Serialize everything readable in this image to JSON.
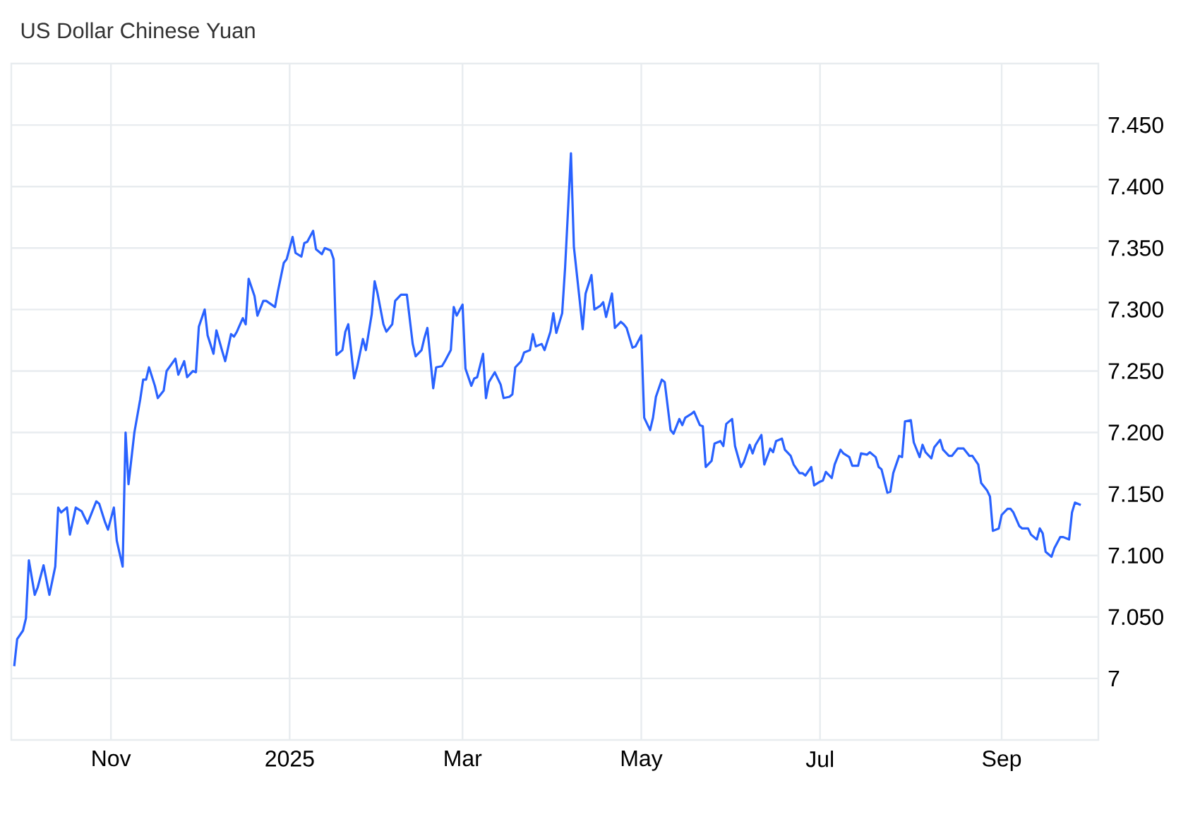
{
  "chart_data": {
    "type": "line",
    "title": "US Dollar Chinese Yuan",
    "color": "#2962ff",
    "grid": true,
    "line_style": "solid",
    "marker": "none",
    "xlim": [
      "2024-09-28",
      "2025-10-04"
    ],
    "xticks": [
      {
        "value": "2024-11-01",
        "label": "Nov"
      },
      {
        "value": "2025-01-01",
        "label": "2025"
      },
      {
        "value": "2025-03-01",
        "label": "Mar"
      },
      {
        "value": "2025-05-01",
        "label": "May"
      },
      {
        "value": "2025-07-01",
        "label": "Jul"
      },
      {
        "value": "2025-09-01",
        "label": "Sep"
      }
    ],
    "ylim": [
      6.95,
      7.5
    ],
    "yticks": [
      7,
      {
        "value": 7.05,
        "label": "7.050"
      },
      {
        "value": 7.1,
        "label": "7.100"
      },
      {
        "value": 7.15,
        "label": "7.150"
      },
      {
        "value": 7.2,
        "label": "7.200"
      },
      {
        "value": 7.25,
        "label": "7.250"
      },
      {
        "value": 7.3,
        "label": "7.300"
      },
      {
        "value": 7.35,
        "label": "7.350"
      },
      {
        "value": 7.4,
        "label": "7.400"
      },
      {
        "value": 7.45,
        "label": "7.450"
      }
    ],
    "x": [
      "2024-09-29",
      "2024-09-30",
      "2024-10-02",
      "2024-10-03",
      "2024-10-04",
      "2024-10-06",
      "2024-10-07",
      "2024-10-09",
      "2024-10-11",
      "2024-10-13",
      "2024-10-14",
      "2024-10-15",
      "2024-10-17",
      "2024-10-18",
      "2024-10-20",
      "2024-10-22",
      "2024-10-24",
      "2024-10-27",
      "2024-10-28",
      "2024-10-30",
      "2024-10-31",
      "2024-11-02",
      "2024-11-03",
      "2024-11-05",
      "2024-11-06",
      "2024-11-07",
      "2024-11-09",
      "2024-11-11",
      "2024-11-12",
      "2024-11-13",
      "2024-11-14",
      "2024-11-16",
      "2024-11-17",
      "2024-11-19",
      "2024-11-20",
      "2024-11-23",
      "2024-11-24",
      "2024-11-26",
      "2024-11-27",
      "2024-11-29",
      "2024-11-30",
      "2024-12-01",
      "2024-12-03",
      "2024-12-04",
      "2024-12-06",
      "2024-12-07",
      "2024-12-09",
      "2024-12-10",
      "2024-12-12",
      "2024-12-13",
      "2024-12-14",
      "2024-12-16",
      "2024-12-17",
      "2024-12-18",
      "2024-12-20",
      "2024-12-21",
      "2024-12-23",
      "2024-12-24",
      "2024-12-27",
      "2024-12-28",
      "2024-12-30",
      "2024-12-31",
      "2025-01-02",
      "2025-01-03",
      "2025-01-05",
      "2025-01-06",
      "2025-01-07",
      "2025-01-09",
      "2025-01-10",
      "2025-01-12",
      "2025-01-13",
      "2025-01-15",
      "2025-01-16",
      "2025-01-17",
      "2025-01-19",
      "2025-01-20",
      "2025-01-21",
      "2025-01-23",
      "2025-01-24",
      "2025-01-26",
      "2025-01-27",
      "2025-01-29",
      "2025-01-30",
      "2025-01-31",
      "2025-02-02",
      "2025-02-03",
      "2025-02-05",
      "2025-02-06",
      "2025-02-08",
      "2025-02-10",
      "2025-02-12",
      "2025-02-13",
      "2025-02-15",
      "2025-02-16",
      "2025-02-17",
      "2025-02-19",
      "2025-02-20",
      "2025-02-22",
      "2025-02-23",
      "2025-02-25",
      "2025-02-26",
      "2025-02-27",
      "2025-03-01",
      "2025-03-02",
      "2025-03-04",
      "2025-03-05",
      "2025-03-06",
      "2025-03-08",
      "2025-03-09",
      "2025-03-10",
      "2025-03-12",
      "2025-03-14",
      "2025-03-15",
      "2025-03-17",
      "2025-03-18",
      "2025-03-19",
      "2025-03-21",
      "2025-03-22",
      "2025-03-24",
      "2025-03-25",
      "2025-03-26",
      "2025-03-28",
      "2025-03-29",
      "2025-03-31",
      "2025-04-01",
      "2025-04-02",
      "2025-04-04",
      "2025-04-05",
      "2025-04-07",
      "2025-04-08",
      "2025-04-10",
      "2025-04-11",
      "2025-04-12",
      "2025-04-14",
      "2025-04-15",
      "2025-04-17",
      "2025-04-18",
      "2025-04-19",
      "2025-04-21",
      "2025-04-22",
      "2025-04-24",
      "2025-04-25",
      "2025-04-26",
      "2025-04-28",
      "2025-04-29",
      "2025-05-01",
      "2025-05-02",
      "2025-05-04",
      "2025-05-05",
      "2025-05-06",
      "2025-05-08",
      "2025-05-09",
      "2025-05-11",
      "2025-05-12",
      "2025-05-14",
      "2025-05-15",
      "2025-05-16",
      "2025-05-18",
      "2025-05-19",
      "2025-05-21",
      "2025-05-22",
      "2025-05-23",
      "2025-05-25",
      "2025-05-26",
      "2025-05-28",
      "2025-05-29",
      "2025-05-30",
      "2025-06-01",
      "2025-06-02",
      "2025-06-04",
      "2025-06-05",
      "2025-06-07",
      "2025-06-08",
      "2025-06-09",
      "2025-06-11",
      "2025-06-12",
      "2025-06-14",
      "2025-06-15",
      "2025-06-16",
      "2025-06-18",
      "2025-06-19",
      "2025-06-21",
      "2025-06-22",
      "2025-06-24",
      "2025-06-25",
      "2025-06-26",
      "2025-06-28",
      "2025-06-29",
      "2025-07-01",
      "2025-07-02",
      "2025-07-03",
      "2025-07-05",
      "2025-07-06",
      "2025-07-08",
      "2025-07-09",
      "2025-07-11",
      "2025-07-12",
      "2025-07-14",
      "2025-07-15",
      "2025-07-17",
      "2025-07-18",
      "2025-07-20",
      "2025-07-21",
      "2025-07-22",
      "2025-07-24",
      "2025-07-25",
      "2025-07-26",
      "2025-07-28",
      "2025-07-29",
      "2025-07-30",
      "2025-08-01",
      "2025-08-02",
      "2025-08-04",
      "2025-08-05",
      "2025-08-06",
      "2025-08-08",
      "2025-08-09",
      "2025-08-11",
      "2025-08-12",
      "2025-08-14",
      "2025-08-15",
      "2025-08-17",
      "2025-08-19",
      "2025-08-21",
      "2025-08-22",
      "2025-08-24",
      "2025-08-25",
      "2025-08-27",
      "2025-08-28",
      "2025-08-29",
      "2025-08-31",
      "2025-09-01",
      "2025-09-03",
      "2025-09-04",
      "2025-09-05",
      "2025-09-07",
      "2025-09-08",
      "2025-09-10",
      "2025-09-11",
      "2025-09-13",
      "2025-09-14",
      "2025-09-15",
      "2025-09-16",
      "2025-09-18",
      "2025-09-19",
      "2025-09-21",
      "2025-09-22",
      "2025-09-24",
      "2025-09-25",
      "2025-09-26",
      "2025-09-28"
    ],
    "values": [
      7.01,
      7.032,
      7.039,
      7.049,
      7.096,
      7.068,
      7.074,
      7.092,
      7.068,
      7.091,
      7.139,
      7.135,
      7.139,
      7.117,
      7.139,
      7.136,
      7.126,
      7.144,
      7.142,
      7.127,
      7.121,
      7.139,
      7.112,
      7.091,
      7.2,
      7.158,
      7.2,
      7.227,
      7.243,
      7.243,
      7.253,
      7.238,
      7.228,
      7.234,
      7.25,
      7.26,
      7.247,
      7.258,
      7.245,
      7.25,
      7.249,
      7.286,
      7.3,
      7.279,
      7.264,
      7.283,
      7.266,
      7.258,
      7.28,
      7.278,
      7.282,
      7.293,
      7.288,
      7.325,
      7.311,
      7.295,
      7.307,
      7.307,
      7.302,
      7.315,
      7.338,
      7.341,
      7.359,
      7.346,
      7.343,
      7.354,
      7.355,
      7.364,
      7.349,
      7.345,
      7.35,
      7.348,
      7.341,
      7.263,
      7.267,
      7.282,
      7.288,
      7.244,
      7.253,
      7.276,
      7.267,
      7.296,
      7.323,
      7.313,
      7.288,
      7.282,
      7.288,
      7.307,
      7.312,
      7.312,
      7.272,
      7.262,
      7.267,
      7.277,
      7.285,
      7.236,
      7.253,
      7.254,
      7.258,
      7.267,
      7.302,
      7.295,
      7.304,
      7.252,
      7.238,
      7.244,
      7.245,
      7.264,
      7.228,
      7.241,
      7.249,
      7.239,
      7.228,
      7.229,
      7.231,
      7.253,
      7.258,
      7.265,
      7.267,
      7.28,
      7.27,
      7.272,
      7.267,
      7.282,
      7.297,
      7.281,
      7.297,
      7.334,
      7.427,
      7.351,
      7.307,
      7.284,
      7.313,
      7.328,
      7.3,
      7.303,
      7.306,
      7.294,
      7.313,
      7.285,
      7.29,
      7.288,
      7.285,
      7.269,
      7.27,
      7.279,
      7.212,
      7.202,
      7.212,
      7.229,
      7.243,
      7.241,
      7.202,
      7.199,
      7.211,
      7.206,
      7.212,
      7.215,
      7.217,
      7.206,
      7.205,
      7.172,
      7.177,
      7.191,
      7.193,
      7.189,
      7.207,
      7.211,
      7.189,
      7.172,
      7.176,
      7.19,
      7.183,
      7.19,
      7.198,
      7.174,
      7.187,
      7.184,
      7.193,
      7.195,
      7.186,
      7.181,
      7.174,
      7.167,
      7.167,
      7.165,
      7.172,
      7.157,
      7.16,
      7.161,
      7.168,
      7.163,
      7.174,
      7.186,
      7.183,
      7.18,
      7.173,
      7.173,
      7.183,
      7.182,
      7.184,
      7.18,
      7.172,
      7.17,
      7.151,
      7.152,
      7.167,
      7.181,
      7.18,
      7.209,
      7.21,
      7.192,
      7.18,
      7.19,
      7.184,
      7.179,
      7.188,
      7.194,
      7.186,
      7.181,
      7.181,
      7.187,
      7.187,
      7.181,
      7.181,
      7.174,
      7.159,
      7.153,
      7.148,
      7.12,
      7.122,
      7.133,
      7.138,
      7.138,
      7.135,
      7.124,
      7.122,
      7.122,
      7.117,
      7.113,
      7.122,
      7.118,
      7.103,
      7.099,
      7.106,
      7.115,
      7.115,
      7.113,
      7.135,
      7.143,
      7.141
    ]
  }
}
